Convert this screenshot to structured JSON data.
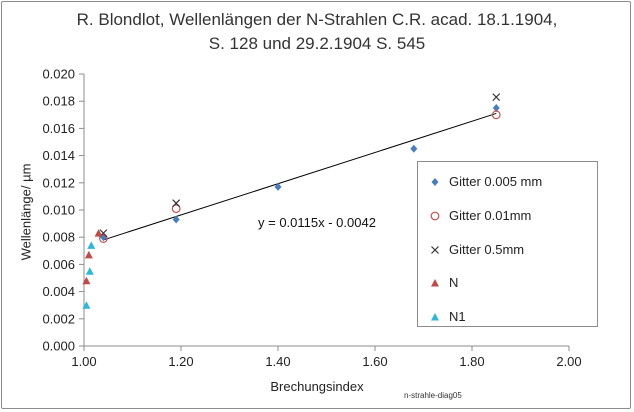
{
  "chart_data": {
    "type": "scatter",
    "title": "R. Blondlot, Wellenlängen der N-Strahlen  C.R. acad. 18.1.1904,",
    "subtitle": "S. 128 und 29.2.1904  S. 545",
    "xlabel": "Brechungsindex",
    "ylabel": "Wellenlänge/ µm",
    "xlim": [
      1.0,
      2.0
    ],
    "ylim": [
      0.0,
      0.02
    ],
    "xticks": [
      "1.00",
      "1.20",
      "1.40",
      "1.60",
      "1.80",
      "2.00"
    ],
    "yticks": [
      "0.000",
      "0.002",
      "0.004",
      "0.006",
      "0.008",
      "0.010",
      "0.012",
      "0.014",
      "0.016",
      "0.018",
      "0.020"
    ],
    "grid": false,
    "legend_position": "right",
    "series": [
      {
        "name": "Gitter 0.005 mm",
        "marker": "diamond",
        "color": "#4a7ebb",
        "x": [
          1.04,
          1.19,
          1.4,
          1.68,
          1.85
        ],
        "y": [
          0.008,
          0.0093,
          0.0117,
          0.0145,
          0.0175
        ]
      },
      {
        "name": "Gitter 0.01mm",
        "marker": "circle-open",
        "color": "#c0504d",
        "x": [
          1.04,
          1.19,
          1.85
        ],
        "y": [
          0.0079,
          0.0101,
          0.017
        ]
      },
      {
        "name": "Gitter 0.5mm",
        "marker": "x",
        "color": "#333333",
        "x": [
          1.04,
          1.19,
          1.85
        ],
        "y": [
          0.0083,
          0.0105,
          0.0183
        ]
      },
      {
        "name": "N",
        "marker": "triangle",
        "color": "#be4b48",
        "x": [
          1.005,
          1.01,
          1.03
        ],
        "y": [
          0.0048,
          0.0067,
          0.0083
        ]
      },
      {
        "name": "N1",
        "marker": "triangle",
        "color": "#31b6d8",
        "x": [
          1.005,
          1.012,
          1.015
        ],
        "y": [
          0.003,
          0.0055,
          0.0074
        ]
      }
    ],
    "trendline": {
      "x": [
        1.04,
        1.85
      ],
      "y": [
        0.0078,
        0.0171
      ],
      "label": "y = 0.0115x - 0.0042"
    }
  },
  "footer": "n-strahle-diag05"
}
